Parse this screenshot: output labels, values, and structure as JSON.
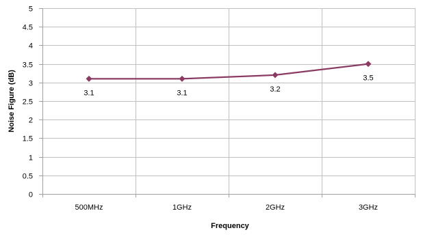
{
  "chart_data": {
    "type": "line",
    "title": "",
    "xlabel": "Frequency",
    "ylabel": "Noise Figure (dB)",
    "categories": [
      "500MHz",
      "1GHz",
      "2GHz",
      "3GHz"
    ],
    "series": [
      {
        "values": [
          3.1,
          3.1,
          3.2,
          3.5
        ],
        "data_labels": [
          "3.1",
          "3.1",
          "3.2",
          "3.5"
        ],
        "color": "#8b3a62",
        "marker": "diamond"
      }
    ],
    "ylim": [
      0,
      5
    ],
    "y_ticks": [
      "0",
      "0.5",
      "1",
      "1.5",
      "2",
      "2.5",
      "3",
      "3.5",
      "4",
      "4.5",
      "5"
    ],
    "y_tick_values": [
      0,
      0.5,
      1,
      1.5,
      2,
      2.5,
      3,
      3.5,
      4,
      4.5,
      5
    ],
    "grid": true,
    "legend": "none",
    "colors": {
      "gridline": "#bfbfbf",
      "axis": "#a0a0a0",
      "series": "#8b3a62"
    }
  }
}
